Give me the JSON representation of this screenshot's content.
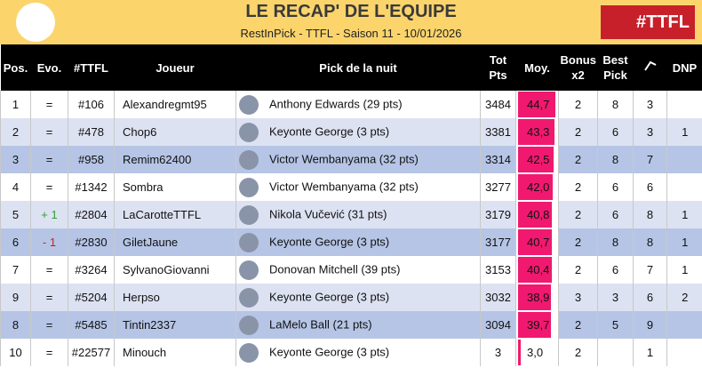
{
  "header": {
    "title": "LE RECAP' DE L'EQUIPE",
    "subtitle": "RestInPick - TTFL - Saison 11 - 10/01/2026",
    "logo_text": "#TTFL"
  },
  "table": {
    "columns": [
      "Pos.",
      "Evo.",
      "#TTFL",
      "Joueur",
      "Pick de la nuit",
      "Tot Pts",
      "Moy.",
      "Bonus x2",
      "Best Pick",
      null,
      "DNP"
    ],
    "rows": [
      [
        "1",
        "=",
        "#106",
        "Alexandregmt95",
        "Anthony Edwards (29 pts)",
        "3484",
        {
          "value": 44.7,
          "label": "44,7"
        },
        "2",
        "8",
        "3",
        null
      ],
      [
        "2",
        "=",
        "#478",
        "Chop6",
        "Keyonte George (3 pts)",
        "3381",
        {
          "value": 43.3,
          "label": "43,3"
        },
        "2",
        "6",
        "3",
        "1"
      ],
      [
        "3",
        "=",
        "#958",
        "Remim62400",
        "Victor Wembanyama (32 pts)",
        "3314",
        {
          "value": 42.5,
          "label": "42,5"
        },
        "2",
        "8",
        "7",
        null
      ],
      [
        "4",
        "=",
        "#1342",
        "Sombra",
        "Victor Wembanyama (32 pts)",
        "3277",
        {
          "value": 42.0,
          "label": "42,0"
        },
        "2",
        "6",
        "6",
        null
      ],
      [
        "5",
        "+ 1",
        "#2804",
        "LaCarotteTTFL",
        "Nikola Vučević (31 pts)",
        "3179",
        {
          "value": 40.8,
          "label": "40,8"
        },
        "2",
        "6",
        "8",
        "1"
      ],
      [
        "6",
        "- 1",
        "#2830",
        "GiletJaune",
        "Keyonte George (3 pts)",
        "3177",
        {
          "value": 40.7,
          "label": "40,7"
        },
        "2",
        "8",
        "8",
        "1"
      ],
      [
        "7",
        "=",
        "#3264",
        "SylvanoGiovanni",
        "Donovan Mitchell (39 pts)",
        "3153",
        {
          "value": 40.4,
          "label": "40,4"
        },
        "2",
        "6",
        "7",
        "1"
      ],
      [
        "9",
        "=",
        "#5204",
        "Herpso",
        "Keyonte George (3 pts)",
        "3032",
        {
          "value": 38.9,
          "label": "38,9"
        },
        "3",
        "3",
        "6",
        "2"
      ],
      [
        "8",
        "=",
        "#5485",
        "Tintin2337",
        "LaMelo Ball (21 pts)",
        "3094",
        {
          "value": 39.7,
          "label": "39,7"
        },
        "2",
        "5",
        "9",
        null
      ],
      [
        "10",
        "=",
        "#22577",
        "Minouch",
        "Keyonte George (3 pts)",
        "3",
        {
          "value": 3.0,
          "label": "3,0"
        },
        "2",
        null,
        "1",
        null
      ]
    ]
  }
}
